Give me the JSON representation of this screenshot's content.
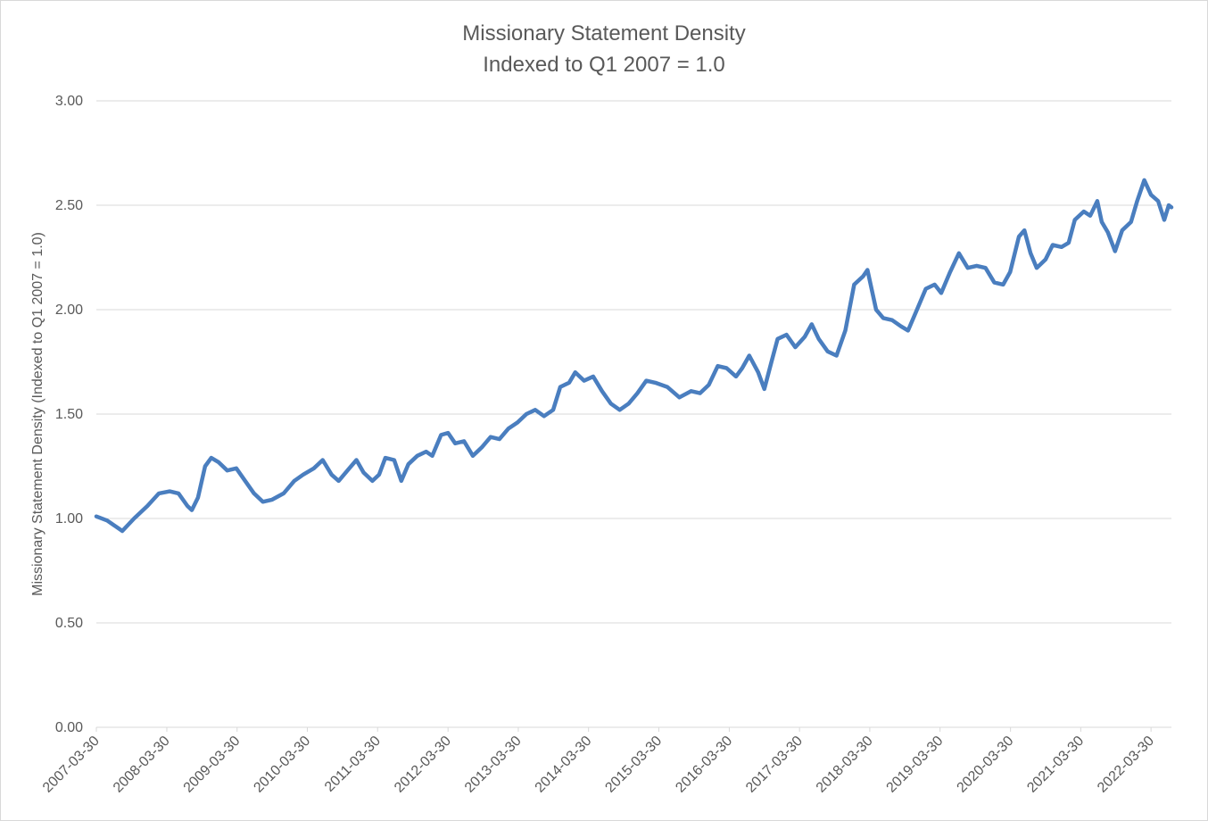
{
  "chart_data": {
    "type": "line",
    "title": "Missionary Statement Density",
    "subtitle": "Indexed to Q1 2007 = 1.0",
    "y_label": "Missionary Statement Density (Indexed to Q1 2007 = 1.0)",
    "grid": true,
    "xlim": [
      "2007-03-30",
      "2022-07-14"
    ],
    "xticks": [
      "2007-03-30",
      "2008-03-30",
      "2009-03-30",
      "2010-03-30",
      "2011-03-30",
      "2012-03-30",
      "2013-03-30",
      "2014-03-30",
      "2015-03-30",
      "2016-03-30",
      "2017-03-30",
      "2018-03-30",
      "2019-03-30",
      "2020-03-30",
      "2021-03-30",
      "2022-03-30"
    ],
    "ylim": [
      0,
      3
    ],
    "yticks": [
      {
        "value": 0,
        "label": "0.00"
      },
      {
        "value": 0.5,
        "label": "0.50"
      },
      {
        "value": 1,
        "label": "1.00"
      },
      {
        "value": 1.5,
        "label": "1.50"
      },
      {
        "value": 2,
        "label": "2.00"
      },
      {
        "value": 2.5,
        "label": "2.50"
      },
      {
        "value": 3,
        "label": "3.00"
      }
    ],
    "x": [
      "2007-03-30",
      "2007-05-25",
      "2007-08-12",
      "2007-10-12",
      "2007-12-20",
      "2008-02-18",
      "2008-04-14",
      "2008-05-30",
      "2008-07-15",
      "2008-08-07",
      "2008-09-08",
      "2008-10-15",
      "2008-11-16",
      "2008-12-23",
      "2009-02-07",
      "2009-03-26",
      "2009-05-11",
      "2009-06-26",
      "2009-08-11",
      "2009-09-28",
      "2009-11-27",
      "2010-01-21",
      "2010-03-08",
      "2010-05-03",
      "2010-06-18",
      "2010-08-03",
      "2010-09-09",
      "2010-11-03",
      "2010-12-10",
      "2011-01-16",
      "2011-03-03",
      "2011-04-07",
      "2011-05-09",
      "2011-06-24",
      "2011-07-31",
      "2011-09-06",
      "2011-10-22",
      "2011-12-07",
      "2012-01-08",
      "2012-02-23",
      "2012-03-30",
      "2012-05-06",
      "2012-06-21",
      "2012-08-06",
      "2012-09-21",
      "2012-11-06",
      "2012-12-22",
      "2013-02-06",
      "2013-03-26",
      "2013-05-11",
      "2013-06-26",
      "2013-08-11",
      "2013-09-27",
      "2013-11-03",
      "2013-12-19",
      "2014-01-20",
      "2014-03-07",
      "2014-04-23",
      "2014-06-08",
      "2014-07-24",
      "2014-09-08",
      "2014-10-24",
      "2014-12-09",
      "2015-01-24",
      "2015-03-12",
      "2015-05-13",
      "2015-07-15",
      "2015-09-14",
      "2015-10-30",
      "2015-12-15",
      "2016-01-30",
      "2016-03-16",
      "2016-05-04",
      "2016-06-05",
      "2016-07-12",
      "2016-08-27",
      "2016-09-28",
      "2016-11-04",
      "2016-12-06",
      "2017-01-21",
      "2017-03-08",
      "2017-04-26",
      "2017-06-01",
      "2017-07-08",
      "2017-08-23",
      "2017-10-08",
      "2017-11-23",
      "2018-01-08",
      "2018-02-23",
      "2018-03-18",
      "2018-05-02",
      "2018-06-08",
      "2018-07-24",
      "2018-09-08",
      "2018-10-15",
      "2018-11-30",
      "2019-01-15",
      "2019-03-02",
      "2019-04-05",
      "2019-05-21",
      "2019-07-06",
      "2019-08-21",
      "2019-10-06",
      "2019-11-21",
      "2020-01-06",
      "2020-02-21",
      "2020-03-28",
      "2020-05-13",
      "2020-06-10",
      "2020-07-12",
      "2020-08-13",
      "2020-09-28",
      "2020-11-04",
      "2020-12-20",
      "2021-01-26",
      "2021-02-27",
      "2021-04-15",
      "2021-05-18",
      "2021-06-24",
      "2021-07-17",
      "2021-08-18",
      "2021-09-24",
      "2021-10-31",
      "2021-12-16",
      "2022-01-17",
      "2022-02-23",
      "2022-03-30",
      "2022-05-06",
      "2022-06-07",
      "2022-06-30",
      "2022-07-14"
    ],
    "series": [
      {
        "name": "Missionary Statement Density",
        "color": "#4a7ebf",
        "values": [
          1.01,
          0.99,
          0.94,
          1.0,
          1.06,
          1.12,
          1.13,
          1.12,
          1.06,
          1.04,
          1.1,
          1.25,
          1.29,
          1.27,
          1.23,
          1.24,
          1.18,
          1.12,
          1.08,
          1.09,
          1.12,
          1.18,
          1.21,
          1.24,
          1.28,
          1.21,
          1.18,
          1.24,
          1.28,
          1.22,
          1.18,
          1.21,
          1.29,
          1.28,
          1.18,
          1.26,
          1.3,
          1.32,
          1.3,
          1.4,
          1.41,
          1.36,
          1.37,
          1.3,
          1.34,
          1.39,
          1.38,
          1.43,
          1.46,
          1.5,
          1.52,
          1.49,
          1.52,
          1.63,
          1.65,
          1.7,
          1.66,
          1.68,
          1.61,
          1.55,
          1.52,
          1.55,
          1.6,
          1.66,
          1.65,
          1.63,
          1.58,
          1.61,
          1.6,
          1.64,
          1.73,
          1.72,
          1.68,
          1.72,
          1.78,
          1.7,
          1.62,
          1.75,
          1.86,
          1.88,
          1.82,
          1.87,
          1.93,
          1.86,
          1.8,
          1.78,
          1.9,
          2.12,
          2.16,
          2.19,
          2.0,
          1.96,
          1.95,
          1.92,
          1.9,
          2.0,
          2.1,
          2.12,
          2.08,
          2.18,
          2.27,
          2.2,
          2.21,
          2.2,
          2.13,
          2.12,
          2.18,
          2.35,
          2.38,
          2.27,
          2.2,
          2.24,
          2.31,
          2.3,
          2.32,
          2.43,
          2.47,
          2.45,
          2.52,
          2.42,
          2.37,
          2.28,
          2.38,
          2.42,
          2.52,
          2.62,
          2.55,
          2.52,
          2.43,
          2.5,
          2.49
        ]
      }
    ]
  }
}
